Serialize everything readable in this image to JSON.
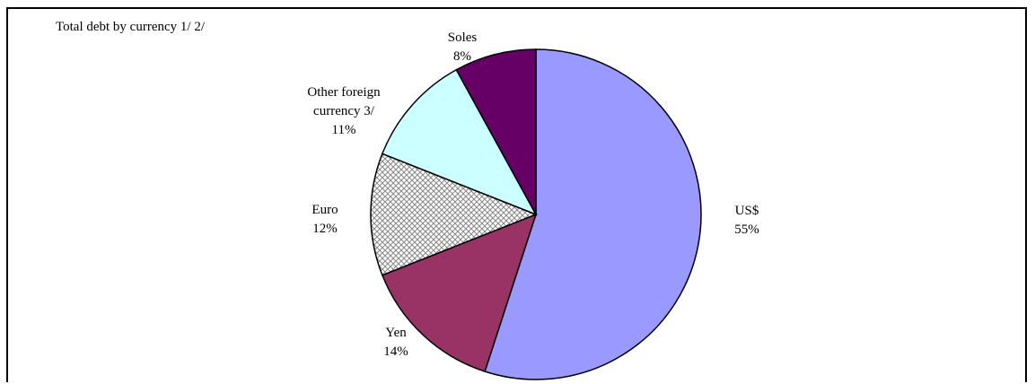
{
  "chart_data": {
    "type": "pie",
    "title": "Total debt by currency 1/ 2/",
    "slices": [
      {
        "name": "US$",
        "value": 55,
        "value_label": "55%",
        "color": "#9999ff",
        "pattern": "none"
      },
      {
        "name": "Yen",
        "value": 14,
        "value_label": "14%",
        "color": "#993366",
        "pattern": "none"
      },
      {
        "name": "Euro",
        "value": 12,
        "value_label": "12%",
        "color": "#ffffff",
        "pattern": "crosshatch"
      },
      {
        "name": "Other foreign currency 3/",
        "name_lines": [
          "Other foreign",
          "currency 3/"
        ],
        "value": 11,
        "value_label": "11%",
        "color": "#ccffff",
        "pattern": "none"
      },
      {
        "name": "Soles",
        "value": 8,
        "value_label": "8%",
        "color": "#660066",
        "pattern": "none"
      }
    ],
    "start_angle_deg": 0,
    "direction": "clockwise",
    "legend": "none"
  }
}
